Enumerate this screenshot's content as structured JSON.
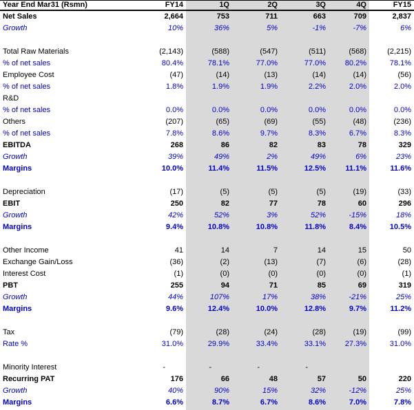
{
  "chart_data": {
    "type": "table",
    "title": "Year End Mar31 (Rsmn)",
    "columns": [
      "FY14",
      "1Q",
      "2Q",
      "3Q",
      "4Q",
      "FY15"
    ],
    "highlighted_columns": [
      "1Q",
      "2Q",
      "3Q",
      "4Q"
    ],
    "colors": {
      "accent_blue": "#0000CC",
      "text_black": "#000000",
      "quarter_band_gray": "#D9D9D9",
      "background": "#FFFFFF"
    },
    "rows": [
      {
        "label": "Net Sales",
        "style": "bold-black",
        "values": [
          "2,664",
          "753",
          "711",
          "663",
          "709",
          "2,837"
        ]
      },
      {
        "label": "Growth",
        "style": "italic-blue",
        "values": [
          "10%",
          "36%",
          "5%",
          "-1%",
          "-7%",
          "6%"
        ]
      },
      {
        "label": "",
        "style": "spacer",
        "values": [
          "",
          "",
          "",
          "",
          "",
          ""
        ]
      },
      {
        "label": "Total Raw Materials",
        "style": "black",
        "values": [
          "(2,143)",
          "(588)",
          "(547)",
          "(511)",
          "(568)",
          "(2,215)"
        ]
      },
      {
        "label": "% of net sales",
        "style": "blue",
        "values": [
          "80.4%",
          "78.1%",
          "77.0%",
          "77.0%",
          "80.2%",
          "78.1%"
        ]
      },
      {
        "label": "Employee Cost",
        "style": "black",
        "values": [
          "(47)",
          "(14)",
          "(13)",
          "(14)",
          "(14)",
          "(56)"
        ]
      },
      {
        "label": "% of net sales",
        "style": "blue",
        "values": [
          "1.8%",
          "1.9%",
          "1.9%",
          "2.2%",
          "2.0%",
          "2.0%"
        ]
      },
      {
        "label": "R&D",
        "style": "black",
        "values": [
          "",
          "",
          "",
          "",
          "",
          ""
        ]
      },
      {
        "label": "% of net sales",
        "style": "blue",
        "values": [
          "0.0%",
          "0.0%",
          "0.0%",
          "0.0%",
          "0.0%",
          "0.0%"
        ]
      },
      {
        "label": "Others",
        "style": "black",
        "values": [
          "(207)",
          "(65)",
          "(69)",
          "(55)",
          "(48)",
          "(236)"
        ]
      },
      {
        "label": "% of net sales",
        "style": "blue",
        "values": [
          "7.8%",
          "8.6%",
          "9.7%",
          "8.3%",
          "6.7%",
          "8.3%"
        ]
      },
      {
        "label": "EBITDA",
        "style": "bold-black",
        "values": [
          "268",
          "86",
          "82",
          "83",
          "78",
          "329"
        ]
      },
      {
        "label": "Growth",
        "style": "italic-blue",
        "values": [
          "39%",
          "49%",
          "2%",
          "49%",
          "6%",
          "23%"
        ]
      },
      {
        "label": "Margins",
        "style": "bold-blue",
        "values": [
          "10.0%",
          "11.4%",
          "11.5%",
          "12.5%",
          "11.1%",
          "11.6%"
        ]
      },
      {
        "label": "",
        "style": "spacer",
        "values": [
          "",
          "",
          "",
          "",
          "",
          ""
        ]
      },
      {
        "label": "Depreciation",
        "style": "black",
        "values": [
          "(17)",
          "(5)",
          "(5)",
          "(5)",
          "(19)",
          "(33)"
        ]
      },
      {
        "label": "EBIT",
        "style": "bold-black",
        "values": [
          "250",
          "82",
          "77",
          "78",
          "60",
          "296"
        ]
      },
      {
        "label": "Growth",
        "style": "italic-blue",
        "values": [
          "42%",
          "52%",
          "3%",
          "52%",
          "-15%",
          "18%"
        ]
      },
      {
        "label": "Margins",
        "style": "bold-blue",
        "values": [
          "9.4%",
          "10.8%",
          "10.8%",
          "11.8%",
          "8.4%",
          "10.5%"
        ]
      },
      {
        "label": "",
        "style": "spacer",
        "values": [
          "",
          "",
          "",
          "",
          "",
          ""
        ]
      },
      {
        "label": "Other Income",
        "style": "black",
        "values": [
          "41",
          "14",
          "7",
          "14",
          "15",
          "50"
        ]
      },
      {
        "label": "Exchange Gain/Loss",
        "style": "black",
        "values": [
          "(36)",
          "(2)",
          "(13)",
          "(7)",
          "(6)",
          "(28)"
        ]
      },
      {
        "label": "Interest Cost",
        "style": "black",
        "values": [
          "(1)",
          "(0)",
          "(0)",
          "(0)",
          "(0)",
          "(1)"
        ]
      },
      {
        "label": "PBT",
        "style": "bold-black",
        "values": [
          "255",
          "94",
          "71",
          "85",
          "69",
          "319"
        ]
      },
      {
        "label": "Growth",
        "style": "italic-blue",
        "values": [
          "44%",
          "107%",
          "17%",
          "38%",
          "-21%",
          "25%"
        ]
      },
      {
        "label": "Margins",
        "style": "bold-blue",
        "values": [
          "9.6%",
          "12.4%",
          "10.0%",
          "12.8%",
          "9.7%",
          "11.2%"
        ]
      },
      {
        "label": "",
        "style": "spacer",
        "values": [
          "",
          "",
          "",
          "",
          "",
          ""
        ]
      },
      {
        "label": "Tax",
        "style": "black",
        "values": [
          "(79)",
          "(28)",
          "(24)",
          "(28)",
          "(19)",
          "(99)"
        ]
      },
      {
        "label": "Rate %",
        "style": "blue",
        "values": [
          "31.0%",
          "29.9%",
          "33.4%",
          "33.1%",
          "27.3%",
          "31.0%"
        ]
      },
      {
        "label": "",
        "style": "spacer",
        "values": [
          "",
          "",
          "",
          "",
          "",
          ""
        ]
      },
      {
        "label": "Minority Interest",
        "style": "black",
        "values": [
          "-",
          "-",
          "-",
          "-",
          "",
          ""
        ]
      },
      {
        "label": "Recurring PAT",
        "style": "bold-black",
        "values": [
          "176",
          "66",
          "48",
          "57",
          "50",
          "220"
        ]
      },
      {
        "label": "Growth",
        "style": "italic-blue",
        "values": [
          "40%",
          "90%",
          "15%",
          "32%",
          "-12%",
          "25%"
        ]
      },
      {
        "label": "Margins",
        "style": "bold-blue",
        "values": [
          "6.6%",
          "8.7%",
          "6.7%",
          "8.6%",
          "7.0%",
          "7.8%"
        ]
      }
    ]
  }
}
